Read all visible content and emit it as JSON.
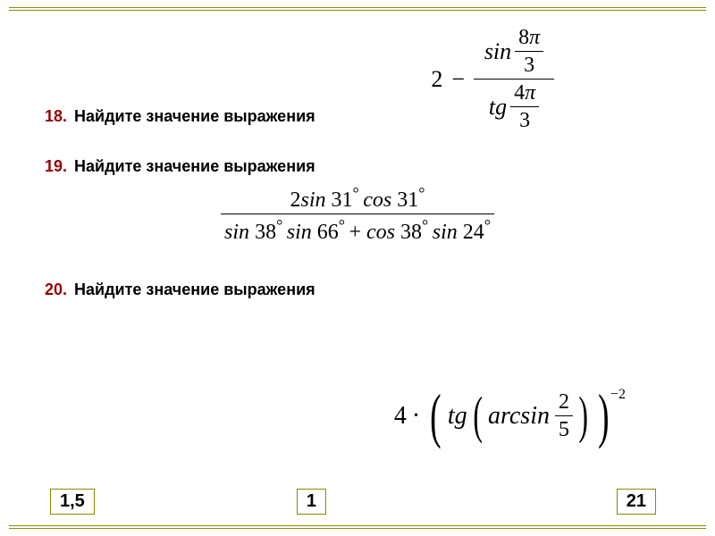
{
  "colors": {
    "accent_border": "#8a8a00",
    "number_color": "#990000",
    "text_color": "#000000",
    "background": "#ffffff"
  },
  "typography": {
    "prompt_font": "Arial",
    "prompt_size_pt": 14,
    "prompt_weight": "bold",
    "formula_font": "Times New Roman",
    "formula_size_pt": 20,
    "formula_style": "italic"
  },
  "problems": [
    {
      "number": "18.",
      "prompt": "Найдите значение выражения",
      "formula": {
        "type": "expression",
        "display": "2 − (sin(8π/3)) / (tg(4π/3))",
        "lead": "2",
        "minus": "−",
        "outer_fraction": {
          "numerator": {
            "fn": "sin",
            "arg_frac": {
              "num": "8",
              "pi": "π",
              "den": "3"
            }
          },
          "denominator": {
            "fn": "tg",
            "arg_frac": {
              "num": "4",
              "pi": "π",
              "den": "3"
            }
          }
        }
      }
    },
    {
      "number": "19.",
      "prompt": "Найдите значение выражения",
      "formula": {
        "type": "fraction",
        "display": "(2 sin31° cos31°) / (sin38° sin66° + cos38° sin24°)",
        "numerator": "2sin 31° cos 31°",
        "denominator": "sin 38° sin 66° + cos 38° sin 24°",
        "parts": {
          "num": [
            {
              "t": "2",
              "up": true
            },
            {
              "t": "sin "
            },
            {
              "t": "31",
              "up": true
            },
            {
              "t": "° ",
              "deg": true
            },
            {
              "t": "cos "
            },
            {
              "t": "31",
              "up": true
            },
            {
              "t": "°",
              "deg": true
            }
          ],
          "den": [
            {
              "t": "sin "
            },
            {
              "t": "38",
              "up": true
            },
            {
              "t": "° ",
              "deg": true
            },
            {
              "t": "sin "
            },
            {
              "t": "66",
              "up": true
            },
            {
              "t": "° ",
              "deg": true
            },
            {
              "t": "+ ",
              "up": true
            },
            {
              "t": "cos "
            },
            {
              "t": "38",
              "up": true
            },
            {
              "t": "° ",
              "deg": true
            },
            {
              "t": "sin "
            },
            {
              "t": "24",
              "up": true
            },
            {
              "t": "°",
              "deg": true
            }
          ]
        }
      }
    },
    {
      "number": "20.",
      "prompt": "Найдите значение выражения",
      "formula": {
        "type": "expression",
        "display": "4 · ( tg( arcsin(2/5) ) )^(−2)",
        "lead": "4",
        "dot": "·",
        "fn_outer": "tg",
        "fn_inner": "arcsin",
        "inner_frac": {
          "num": "2",
          "den": "5"
        },
        "exponent": "−2"
      }
    }
  ],
  "answers": {
    "boxes": [
      "1,5",
      "1",
      "21"
    ],
    "box_style": {
      "border_color": "#8a8a00",
      "border_width": 1.5,
      "font": "Arial",
      "font_weight": "bold",
      "font_size_pt": 15
    }
  }
}
